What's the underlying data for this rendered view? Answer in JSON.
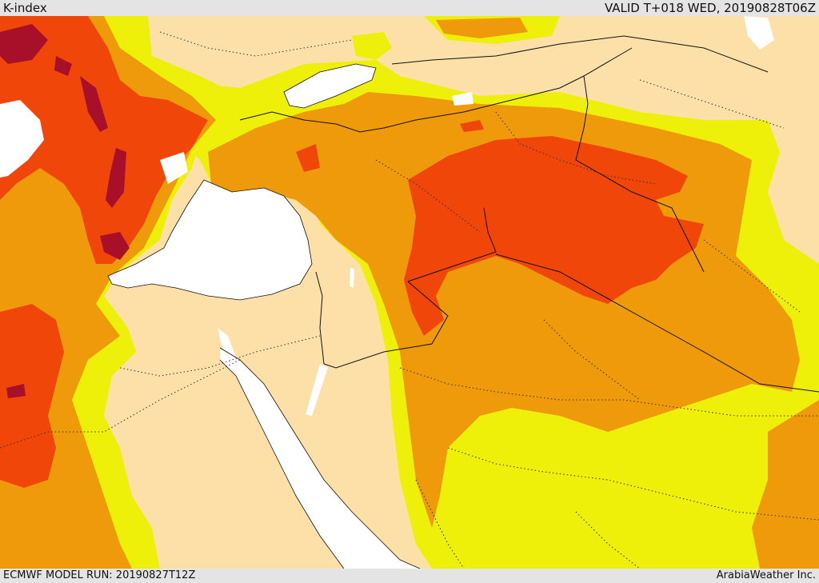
{
  "header": {
    "title": "K-index",
    "valid": "VALID T+018 WED, 20190828T06Z"
  },
  "footer": {
    "model_run": "ECMWF MODEL RUN: 20190827T12Z",
    "credit": "ArabiaWeather Inc."
  },
  "map": {
    "colors": {
      "land_base": "#fde0a7",
      "water": "#ffffff",
      "level1_yellow": "#eef00a",
      "level2_orange": "#ef9a0a",
      "level3_red_orange": "#f0460a",
      "level4_dark_red": "#a8102a",
      "border": "#111111"
    }
  }
}
